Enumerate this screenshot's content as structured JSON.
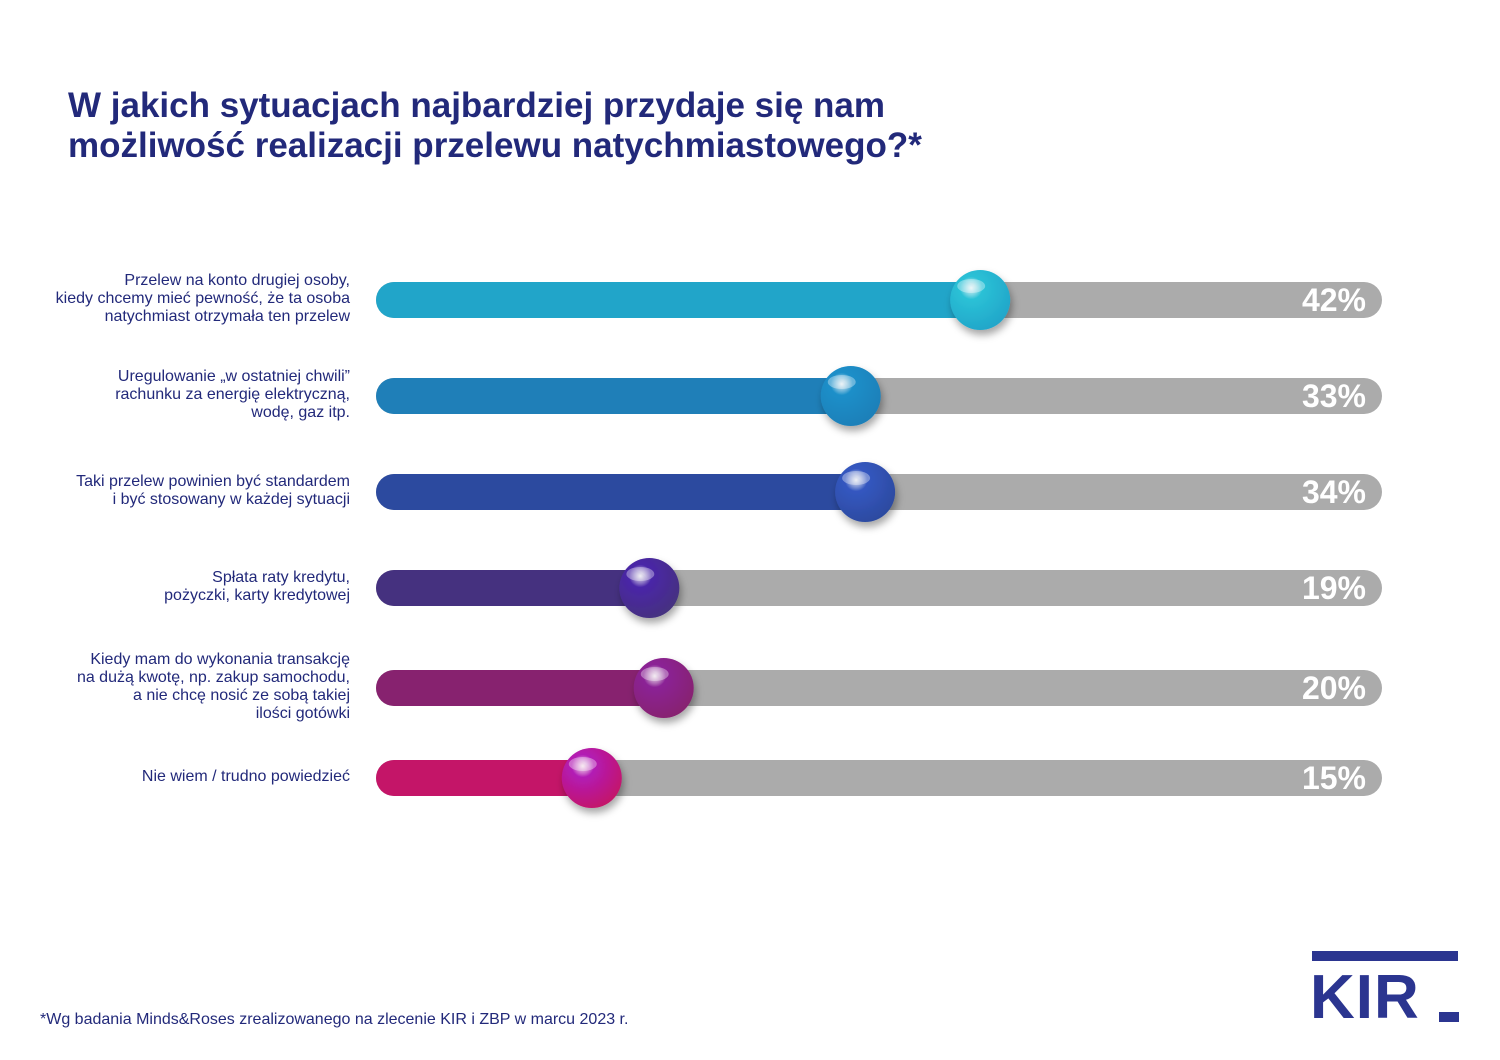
{
  "title_lines": [
    "W jakich sytuacjach najbardziej przydaje się nam",
    "możliwość realizacji przelewu natychmiastowego?*"
  ],
  "chart_data": {
    "type": "bar",
    "orientation": "horizontal",
    "title": "W jakich sytuacjach najbardziej przydaje się nam możliwość realizacji przelewu natychmiastowego?*",
    "categories": [
      "Przelew na konto drugiej osoby, kiedy chcemy mieć pewność, że ta osoba natychmiast otrzymała ten przelew",
      "Uregulowanie „w ostatniej chwili” rachunku za energię elektryczną, wodę, gaz itp.",
      "Taki przelew powinien być standardem i być stosowany w każdej sytuacji",
      "Spłata raty kredytu, pożyczki, karty kredytowej",
      "Kiedy mam do wykonania transakcję na dużą kwotę, np. zakup samochodu, a nie chcę nosić ze sobą takiej ilości gotówki",
      "Nie wiem / trudno powiedzieć"
    ],
    "values": [
      42,
      33,
      34,
      19,
      20,
      15
    ],
    "value_labels": [
      "42%",
      "33%",
      "34%",
      "19%",
      "20%",
      "15%"
    ],
    "unit": "%",
    "xlim": [
      0,
      100
    ],
    "grid": false,
    "legend": "none",
    "xlabel": "",
    "ylabel": ""
  },
  "category_label_lines": [
    [
      "Przelew na konto drugiej osoby,",
      "kiedy chcemy mieć pewność, że ta osoba",
      "natychmiast otrzymała ten przelew"
    ],
    [
      "Uregulowanie „w ostatniej chwili”",
      "rachunku za energię elektryczną,",
      "wodę, gaz itp."
    ],
    [
      "Taki przelew powinien być standardem",
      "i być stosowany w każdej sytuacji"
    ],
    [
      "Spłata raty kredytu,",
      "pożyczki, karty kredytowej"
    ],
    [
      "Kiedy mam do wykonania transakcję",
      "na dużą kwotę, np. zakup samochodu,",
      "a nie chcę nosić ze sobą takiej",
      "ilości gotówki"
    ],
    [
      "Nie wiem / trudno powiedzieć"
    ]
  ],
  "colors": {
    "title": "#22297a",
    "track": "#ababab",
    "value_label": "#ffffff",
    "bars": [
      "#21a5c9",
      "#1f7fb8",
      "#2c4a9f",
      "#45317f",
      "#87226f",
      "#c41568"
    ],
    "knobs": [
      "#2bc1d6",
      "#1a8fc9",
      "#3457c0",
      "#4a26a8",
      "#8b2396",
      "#b21bb5"
    ]
  },
  "footnote": "*Wg badania Minds&Roses zrealizowanego na zlecenie KIR i ZBP w marcu 2023 r.",
  "logo": {
    "text": "KIR"
  }
}
